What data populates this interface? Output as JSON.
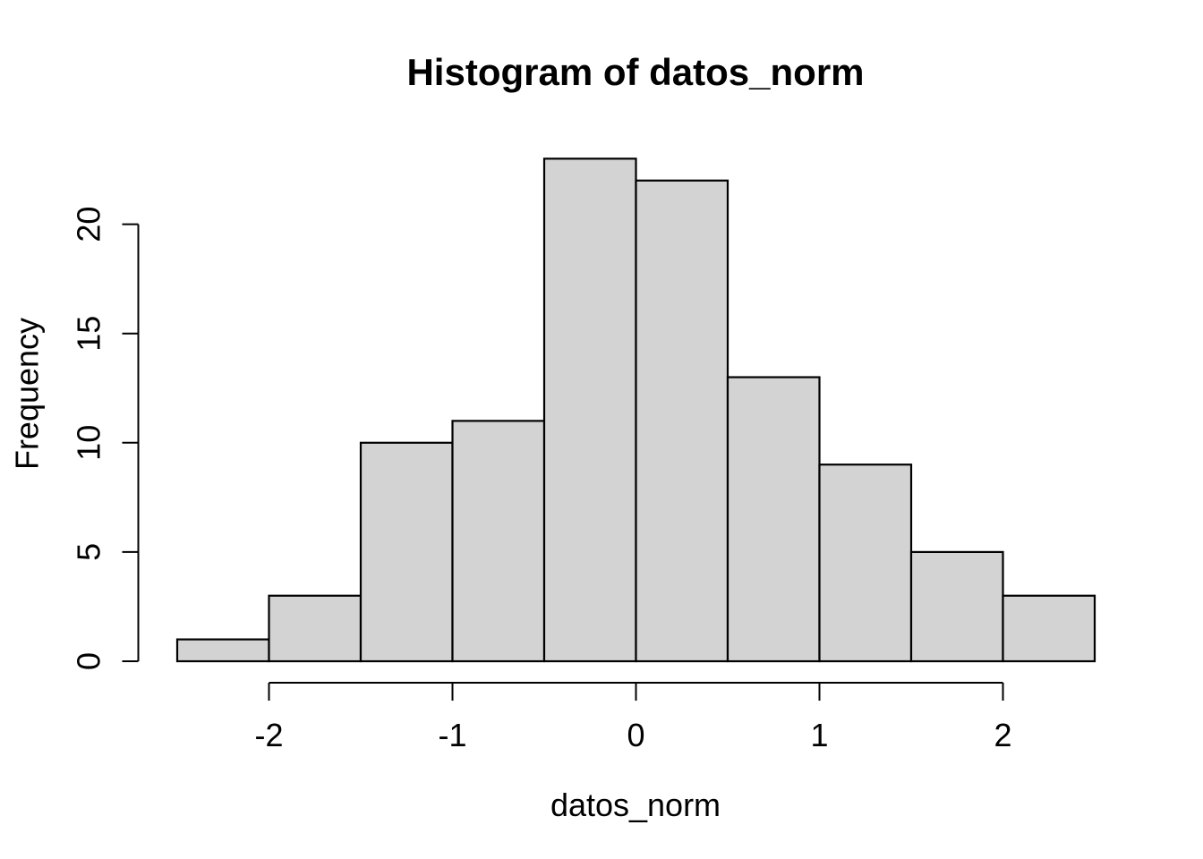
{
  "chart_data": {
    "type": "bar",
    "subtype": "histogram",
    "title": "Histogram of datos_norm",
    "xlabel": "datos_norm",
    "ylabel": "Frequency",
    "bin_edges": [
      -2.5,
      -2.0,
      -1.5,
      -1.0,
      -0.5,
      0.0,
      0.5,
      1.0,
      1.5,
      2.0,
      2.5
    ],
    "counts": [
      1,
      3,
      10,
      11,
      23,
      22,
      13,
      9,
      5,
      3
    ],
    "x_ticks": [
      -2,
      -1,
      0,
      1,
      2
    ],
    "y_ticks": [
      0,
      5,
      10,
      15,
      20
    ],
    "xlim": [
      -2.5,
      2.5
    ],
    "ylim": [
      0,
      23
    ],
    "grid": false,
    "legend": false,
    "bar_fill_color": "#d3d3d3",
    "bar_border_color": "#000000",
    "axis_color": "#000000",
    "text_color": "#000000",
    "background_color": "#ffffff"
  }
}
